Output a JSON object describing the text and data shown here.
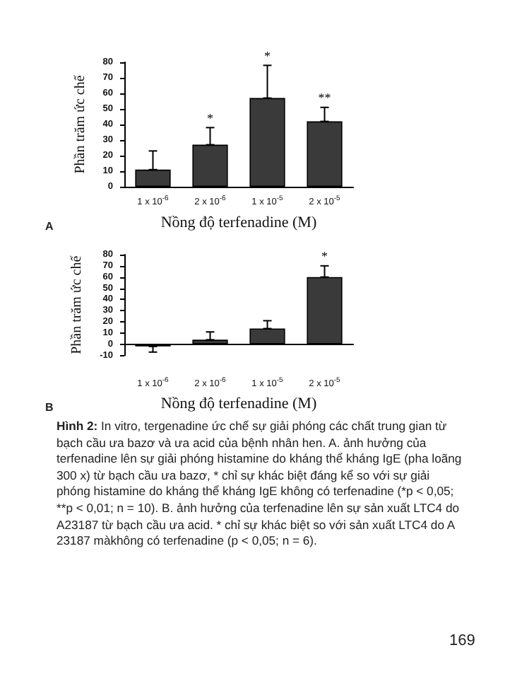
{
  "chart_data": [
    {
      "type": "bar",
      "xlabel": "Nồng độ terfenadine (M)",
      "ylabel": "Phần trăm ức chế",
      "categories": [
        "1 x 10$^{-6}$",
        "2 x 10$^{-6}$",
        "1 x 10$^{-5}$",
        "2 x 10$^{-5}$"
      ],
      "values": [
        11,
        27,
        57,
        42
      ],
      "errors": [
        [
          11,
          23
        ],
        [
          27,
          38
        ],
        [
          57,
          78
        ],
        [
          42,
          51
        ]
      ],
      "color": "#3a3a3a",
      "ylim": [
        0,
        80
      ],
      "yticks": [
        0,
        10,
        20,
        30,
        40,
        50,
        60,
        70,
        80
      ],
      "annotations": [
        "A",
        {
          "text": "*",
          "x": "2 x 10$^{-6}$",
          "y": 40
        },
        {
          "text": "*",
          "x": "1 x 10$^{-5}$",
          "y": 80
        },
        {
          "text": "**",
          "x": "2 x 10$^{-5}$",
          "y": 53
        }
      ]
    },
    {
      "type": "bar",
      "xlabel": "Nồng độ terfenadine (M)",
      "ylabel": "Phần trăm ức chế",
      "categories": [
        "1 x 10$^{-6}$",
        "2 x 10$^{-6}$",
        "1 x 10$^{-5}$",
        "2 x 10$^{-5}$"
      ],
      "values": [
        -2,
        4,
        14,
        60
      ],
      "errors": [
        [
          -7,
          -2
        ],
        [
          4,
          11
        ],
        [
          14,
          21
        ],
        [
          60,
          70
        ]
      ],
      "color": "#3a3a3a",
      "ylim": [
        -10,
        80
      ],
      "yticks": [
        -10,
        0,
        10,
        20,
        30,
        40,
        50,
        60,
        70,
        80
      ],
      "annotations": [
        "B",
        {
          "text": "*",
          "x": "2 x 10$^{-5}$",
          "y": 73
        },
        "Hình 2: In vitro, tergenadine ức chế sự giải phóng các chất trung gian từ bạch cầu ưa bazơ và ưa acid của bệnh nhân hen. A. ảnh hưởng của terfenadine lên sự giải phóng histamine do kháng thể kháng IgE (pha loãng 300 x) từ bạch cầu ưa bazơ, * chỉ sự khác biệt đáng kể so với sự giải phóng histamine do kháng thể kháng IgE không có terfenadine (*p < 0,05; **p < 0,01; n = 10). B. ảnh hưởng của terfenadine lên sự sản xuất LTC4 do A23187 từ bạch cầu ưa acid. * chỉ sự khác biệt so với sản xuất LTC4 do A 23187 màkhông có terfenadine (p < 0,05; n = 6).",
        "169"
      ]
    }
  ]
}
